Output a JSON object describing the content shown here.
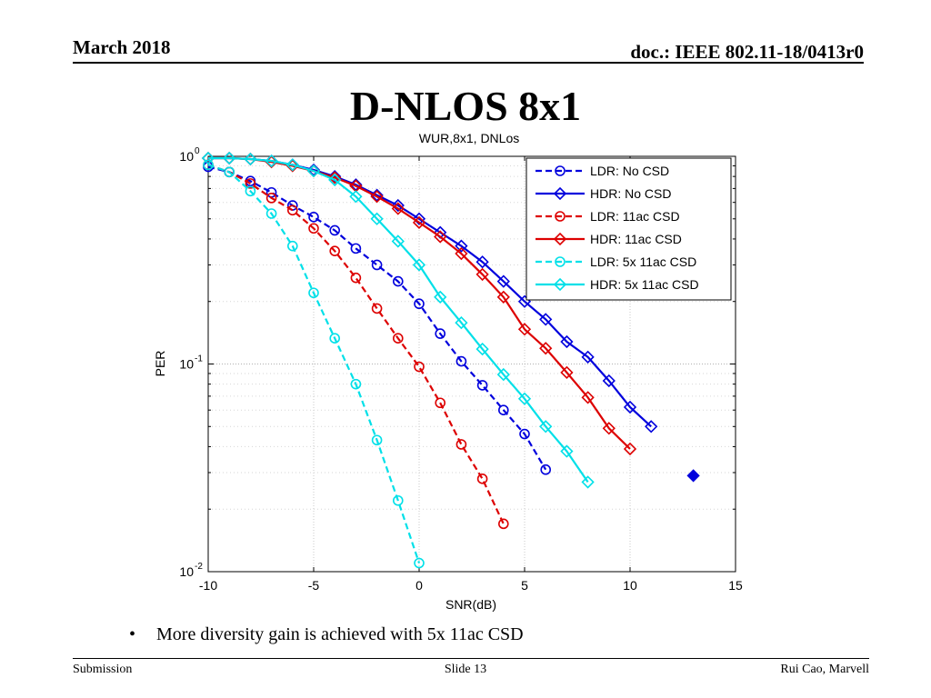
{
  "header": {
    "date": "March 2018",
    "doc_id": "doc.: IEEE 802.11-18/0413r0"
  },
  "slide_title": "D-NLOS 8x1",
  "bullet": {
    "marker": "•",
    "text": "More diversity gain is achieved with 5x 11ac CSD"
  },
  "footer": {
    "left": "Submission",
    "center": "Slide 13",
    "right": "Rui Cao, Marvell"
  },
  "chart_data": {
    "type": "line",
    "title": "WUR,8x1, DNLos",
    "xlabel": "SNR(dB)",
    "ylabel": "PER",
    "yscale": "log",
    "xlim": [
      -10,
      15
    ],
    "ylim": [
      0.01,
      1
    ],
    "xticks": [
      -10,
      -5,
      0,
      5,
      10,
      15
    ],
    "xtick_labels": [
      "-10",
      "-5",
      "0",
      "5",
      "10",
      "15"
    ],
    "yticks": [
      {
        "value": 1,
        "base": "10",
        "exp": "0"
      },
      {
        "value": 0.1,
        "base": "10",
        "exp": "-1"
      },
      {
        "value": 0.01,
        "base": "10",
        "exp": "-2"
      }
    ],
    "grid": true,
    "legend_position": "top-right",
    "series": [
      {
        "name": "LDR: No CSD",
        "color": "#0000dd",
        "dash": true,
        "marker": "circle",
        "x": [
          -10,
          -9,
          -8,
          -7,
          -6,
          -5,
          -4,
          -3,
          -2,
          -1,
          0,
          1,
          2,
          3,
          4,
          5,
          6
        ],
        "y": [
          0.89,
          0.84,
          0.76,
          0.67,
          0.58,
          0.51,
          0.44,
          0.36,
          0.3,
          0.25,
          0.195,
          0.14,
          0.103,
          0.079,
          0.06,
          0.046,
          0.031
        ]
      },
      {
        "name": "HDR: No CSD",
        "color": "#0000dd",
        "dash": false,
        "marker": "diamond",
        "x": [
          -10,
          -9,
          -8,
          -7,
          -6,
          -5,
          -4,
          -3,
          -2,
          -1,
          0,
          1,
          2,
          3,
          4,
          5,
          6,
          7,
          8,
          9,
          10,
          11
        ],
        "y": [
          0.98,
          0.98,
          0.97,
          0.95,
          0.91,
          0.86,
          0.8,
          0.73,
          0.65,
          0.58,
          0.5,
          0.43,
          0.37,
          0.31,
          0.25,
          0.2,
          0.164,
          0.128,
          0.108,
          0.083,
          0.062,
          0.05
        ]
      },
      {
        "name": "LDR: 11ac CSD",
        "color": "#dd0000",
        "dash": true,
        "marker": "circle",
        "x": [
          -10,
          -9,
          -8,
          -7,
          -6,
          -5,
          -4,
          -3,
          -2,
          -1,
          0,
          1,
          2,
          3,
          4
        ],
        "y": [
          0.91,
          0.84,
          0.74,
          0.63,
          0.55,
          0.45,
          0.35,
          0.26,
          0.185,
          0.133,
          0.097,
          0.065,
          0.041,
          0.028,
          0.017
        ]
      },
      {
        "name": "HDR: 11ac CSD",
        "color": "#dd0000",
        "dash": false,
        "marker": "diamond",
        "x": [
          -10,
          -9,
          -8,
          -7,
          -6,
          -5,
          -4,
          -3,
          -2,
          -1,
          0,
          1,
          2,
          3,
          4,
          5,
          6,
          7,
          8,
          9,
          10
        ],
        "y": [
          0.98,
          0.98,
          0.97,
          0.94,
          0.9,
          0.85,
          0.79,
          0.72,
          0.64,
          0.56,
          0.48,
          0.41,
          0.34,
          0.27,
          0.21,
          0.147,
          0.119,
          0.091,
          0.069,
          0.049,
          0.039
        ]
      },
      {
        "name": "LDR: 5x 11ac CSD",
        "color": "#00e0e8",
        "dash": true,
        "marker": "circle",
        "x": [
          -10,
          -9,
          -8,
          -7,
          -6,
          -5,
          -4,
          -3,
          -2,
          -1,
          0
        ],
        "y": [
          0.91,
          0.84,
          0.68,
          0.53,
          0.37,
          0.22,
          0.133,
          0.08,
          0.043,
          0.022,
          0.011
        ]
      },
      {
        "name": "HDR: 5x 11ac CSD",
        "color": "#00e0e8",
        "dash": false,
        "marker": "diamond",
        "x": [
          -10,
          -9,
          -8,
          -7,
          -6,
          -5,
          -4,
          -3,
          -2,
          -1,
          0,
          1,
          2,
          3,
          4,
          5,
          6,
          7,
          8
        ],
        "y": [
          0.98,
          0.98,
          0.97,
          0.95,
          0.91,
          0.85,
          0.77,
          0.64,
          0.5,
          0.39,
          0.3,
          0.21,
          0.158,
          0.118,
          0.089,
          0.068,
          0.05,
          0.038,
          0.027
        ]
      },
      {
        "name": "",
        "color": "#0000dd",
        "dash": false,
        "marker": "diamond",
        "in_legend": false,
        "x": [
          13
        ],
        "y": [
          0.029
        ]
      }
    ]
  }
}
